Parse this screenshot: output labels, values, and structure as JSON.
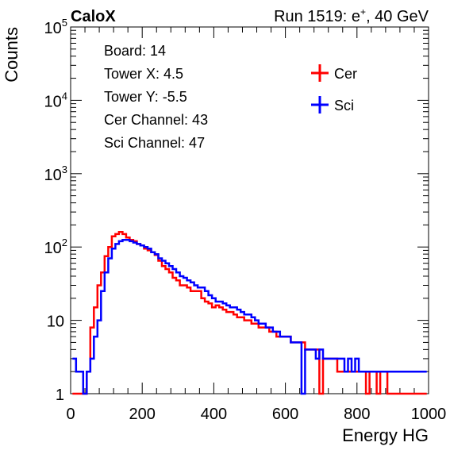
{
  "header": {
    "left_title": "CaloX",
    "right_title_prefix": "Run 1519: e",
    "right_title_sup": "+",
    "right_title_suffix": ", 40 GeV"
  },
  "info_lines": [
    "Board: 14",
    "Tower X: 4.5",
    "Tower Y: -5.5",
    "Cer Channel: 43",
    "Sci Channel: 47"
  ],
  "chart_data": {
    "type": "line",
    "xlabel": "Energy HG",
    "ylabel": "Counts",
    "xlim": [
      0,
      1000
    ],
    "ylim": [
      1,
      100000
    ],
    "yscale": "log",
    "x_ticks": [
      0,
      200,
      400,
      600,
      800,
      1000
    ],
    "x_tick_labels": [
      "0",
      "200",
      "400",
      "600",
      "800",
      "1000"
    ],
    "y_ticks": [
      1,
      10,
      100,
      1000,
      10000,
      100000
    ],
    "y_tick_labels": [
      {
        "base": "1",
        "exp": ""
      },
      {
        "base": "10",
        "exp": ""
      },
      {
        "base": "10",
        "exp": "2"
      },
      {
        "base": "10",
        "exp": "3"
      },
      {
        "base": "10",
        "exp": "4"
      },
      {
        "base": "10",
        "exp": "5"
      }
    ],
    "legend_position": "top-right",
    "grid": false,
    "series": [
      {
        "name": "Cer",
        "color": "#ff0000",
        "x": [
          10,
          20,
          30,
          40,
          50,
          60,
          70,
          80,
          90,
          100,
          110,
          120,
          130,
          140,
          150,
          160,
          170,
          180,
          190,
          200,
          210,
          220,
          230,
          240,
          250,
          260,
          270,
          280,
          290,
          300,
          310,
          320,
          330,
          340,
          350,
          360,
          370,
          380,
          390,
          400,
          410,
          420,
          430,
          440,
          450,
          460,
          470,
          480,
          490,
          500,
          510,
          520,
          530,
          540,
          550,
          560,
          570,
          580,
          590,
          600,
          610,
          620,
          630,
          640,
          650,
          660,
          670,
          680,
          690,
          700,
          710,
          720,
          730,
          740,
          750,
          760,
          770,
          780,
          790,
          800,
          810,
          820,
          830,
          840,
          850,
          860,
          870,
          880,
          890,
          900,
          910,
          920,
          930,
          940,
          950,
          960,
          970,
          980,
          990
        ],
        "values": [
          1,
          1,
          1,
          1,
          2,
          8,
          15,
          30,
          45,
          75,
          100,
          140,
          150,
          160,
          150,
          135,
          125,
          120,
          110,
          105,
          95,
          90,
          85,
          78,
          65,
          55,
          50,
          45,
          38,
          35,
          30,
          30,
          28,
          25,
          25,
          25,
          20,
          18,
          17,
          15,
          16,
          15,
          14,
          13,
          13,
          12,
          11,
          11,
          10,
          10,
          9,
          9,
          8,
          8,
          8,
          7,
          7,
          6,
          6,
          6,
          6,
          5,
          5,
          5,
          5,
          4,
          4,
          4,
          4,
          1,
          3,
          3,
          3,
          3,
          2,
          2,
          2,
          2,
          2,
          2,
          2,
          2,
          1,
          2,
          2,
          1,
          2,
          2,
          1,
          1,
          1,
          1,
          1,
          1,
          1,
          1,
          1,
          1,
          1
        ]
      },
      {
        "name": "Sci",
        "color": "#0000ff",
        "x": [
          10,
          20,
          30,
          40,
          50,
          60,
          70,
          80,
          90,
          100,
          110,
          120,
          130,
          140,
          150,
          160,
          170,
          180,
          190,
          200,
          210,
          220,
          230,
          240,
          250,
          260,
          270,
          280,
          290,
          300,
          310,
          320,
          330,
          340,
          350,
          360,
          370,
          380,
          390,
          400,
          410,
          420,
          430,
          440,
          450,
          460,
          470,
          480,
          490,
          500,
          510,
          520,
          530,
          540,
          550,
          560,
          570,
          580,
          590,
          600,
          610,
          620,
          630,
          640,
          650,
          660,
          670,
          680,
          690,
          700,
          710,
          720,
          730,
          740,
          750,
          760,
          770,
          780,
          790,
          800,
          810,
          820,
          830,
          840,
          850,
          860,
          870,
          880,
          890,
          900,
          910,
          920,
          930,
          940,
          950,
          960,
          970,
          980,
          990
        ],
        "values": [
          3,
          2,
          2,
          1,
          2,
          3,
          6,
          10,
          25,
          45,
          70,
          95,
          110,
          120,
          125,
          125,
          120,
          115,
          110,
          105,
          100,
          95,
          85,
          80,
          70,
          65,
          60,
          55,
          50,
          45,
          40,
          38,
          35,
          33,
          30,
          28,
          28,
          25,
          22,
          20,
          18,
          18,
          17,
          16,
          15,
          15,
          14,
          13,
          12,
          12,
          11,
          10,
          9,
          9,
          8,
          8,
          7,
          7,
          6,
          6,
          6,
          5,
          5,
          5,
          1,
          4,
          4,
          4,
          3,
          4,
          3,
          3,
          3,
          3,
          3,
          3,
          2,
          3,
          2,
          3,
          2,
          2,
          2,
          2,
          2,
          2,
          2,
          2,
          2,
          2,
          2,
          2,
          2,
          2,
          2,
          2,
          2,
          2,
          2
        ]
      }
    ]
  }
}
